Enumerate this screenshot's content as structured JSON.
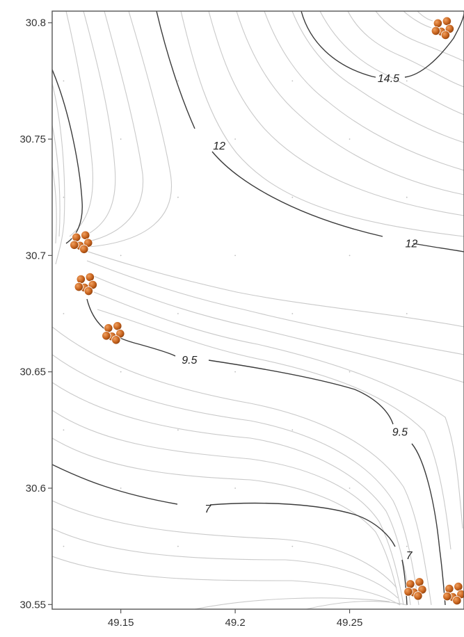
{
  "map": {
    "x_axis": {
      "range": [
        49.12,
        49.3
      ],
      "ticks": [
        49.15,
        49.2,
        49.25
      ],
      "tick_labels": [
        "49.15",
        "49.2",
        "49.25"
      ]
    },
    "y_axis": {
      "range": [
        30.548,
        30.805
      ],
      "ticks": [
        30.55,
        30.6,
        30.65,
        30.7,
        30.75,
        30.8
      ],
      "tick_labels": [
        "30.55",
        "30.6",
        "30.65",
        "30.7",
        "30.75",
        "30.8"
      ]
    },
    "contour_labels": [
      {
        "text": "14.5",
        "x": 49.267,
        "y": 30.776
      },
      {
        "text": "12",
        "x": 49.193,
        "y": 30.747
      },
      {
        "text": "12",
        "x": 49.277,
        "y": 30.705
      },
      {
        "text": "9.5",
        "x": 49.18,
        "y": 30.655
      },
      {
        "text": "9.5",
        "x": 49.272,
        "y": 30.624
      },
      {
        "text": "7",
        "x": 49.188,
        "y": 30.591
      },
      {
        "text": "7",
        "x": 49.276,
        "y": 30.571
      }
    ],
    "well_clusters": [
      {
        "x": 49.133,
        "y": 30.706
      },
      {
        "x": 49.135,
        "y": 30.688
      },
      {
        "x": 49.147,
        "y": 30.667
      },
      {
        "x": 49.291,
        "y": 30.798
      },
      {
        "x": 49.279,
        "y": 30.557
      },
      {
        "x": 49.296,
        "y": 30.555
      }
    ],
    "grid_dots": true,
    "colors": {
      "well": "#c8641e",
      "major_contour": "#3a3a3a",
      "minor_contour": "#c9c9c9"
    }
  }
}
